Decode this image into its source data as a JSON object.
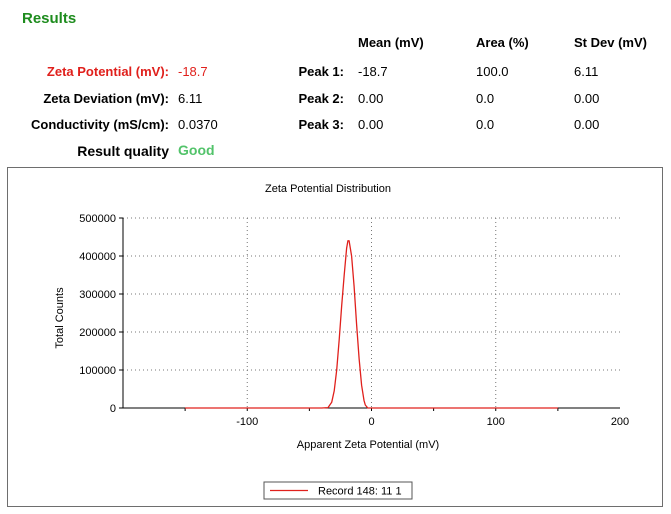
{
  "results": {
    "title": "Results",
    "headers": {
      "mean": "Mean (mV)",
      "area": "Area (%)",
      "stdev": "St Dev (mV)"
    },
    "metrics": [
      {
        "label": "Zeta Potential (mV):",
        "value": "-18.7"
      },
      {
        "label": "Zeta Deviation (mV):",
        "value": "6.11"
      },
      {
        "label": "Conductivity (mS/cm):",
        "value": "0.0370"
      }
    ],
    "quality": {
      "label": "Result quality",
      "value": "Good"
    },
    "peaks": [
      {
        "label": "Peak 1:",
        "mean": "-18.7",
        "area": "100.0",
        "stdev": "6.11"
      },
      {
        "label": "Peak 2:",
        "mean": "0.00",
        "area": "0.0",
        "stdev": "0.00"
      },
      {
        "label": "Peak 3:",
        "mean": "0.00",
        "area": "0.0",
        "stdev": "0.00"
      }
    ],
    "colors": {
      "title": "#1e8c1e",
      "highlight": "#e0201c",
      "good": "#52c36a"
    }
  },
  "chart_data": {
    "type": "line",
    "title": "Zeta Potential Distribution",
    "xlabel": "Apparent Zeta Potential (mV)",
    "ylabel": "Total Counts",
    "xlim": [
      -200,
      200
    ],
    "ylim": [
      0,
      500000
    ],
    "xticks": [
      -100,
      0,
      100,
      200
    ],
    "yticks": [
      0,
      100000,
      200000,
      300000,
      400000,
      500000
    ],
    "grid": true,
    "legend_position": "bottom-center",
    "series": [
      {
        "name": "Record 148: 11 1",
        "color": "#e0201c",
        "x": [
          -150,
          -60,
          -40,
          -35,
          -32,
          -30,
          -28,
          -26,
          -24,
          -22,
          -20,
          -19,
          -18,
          -16,
          -14,
          -12,
          -10,
          -8,
          -6,
          -5,
          -3,
          0,
          40,
          150
        ],
        "y": [
          0,
          0,
          0,
          1000,
          15000,
          45000,
          100000,
          180000,
          270000,
          350000,
          420000,
          440000,
          440000,
          400000,
          320000,
          220000,
          130000,
          60000,
          20000,
          8000,
          0,
          0,
          0,
          0
        ]
      }
    ]
  }
}
